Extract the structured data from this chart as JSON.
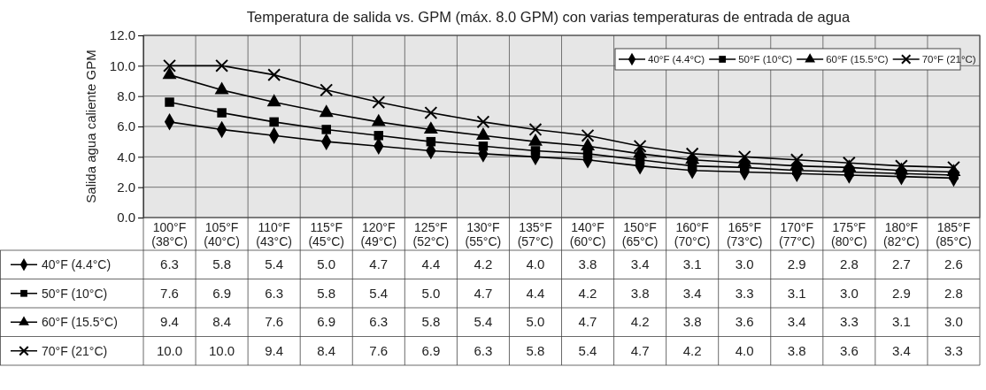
{
  "chart_data": {
    "type": "line",
    "title": "Temperatura de salida vs. GPM (máx. 8.0 GPM) con varias temperaturas de entrada de agua",
    "ylabel": "Salida agua caliente GPM",
    "categories": [
      "100°F (38°C)",
      "105°F (40°C)",
      "110°F (43°C)",
      "115°F (45°C)",
      "120°F (49°C)",
      "125°F (52°C)",
      "130°F (55°C)",
      "135°F (57°C)",
      "140°F (60°C)",
      "150°F (65°C)",
      "160°F (70°C)",
      "165°F (73°C)",
      "170°F (77°C)",
      "175°F (80°C)",
      "180°F (82°C)",
      "185°F (85°C)"
    ],
    "ylim": [
      0,
      12
    ],
    "yticks": [
      {
        "value": 0,
        "label": "0.0"
      },
      {
        "value": 2,
        "label": "2.0"
      },
      {
        "value": 4,
        "label": "4.0"
      },
      {
        "value": 6,
        "label": "6.0"
      },
      {
        "value": 8,
        "label": "8.0"
      },
      {
        "value": 10,
        "label": "10.0"
      },
      {
        "value": 12,
        "label": "12.0"
      }
    ],
    "grid": true,
    "legend": "top right",
    "line_style": "solid",
    "series": [
      {
        "name": "40°F (4.4°C)",
        "color": "#000000",
        "marker": "diamond",
        "values": [
          6.3,
          5.8,
          5.4,
          5.0,
          4.7,
          4.4,
          4.2,
          4.0,
          3.8,
          3.4,
          3.1,
          3.0,
          2.9,
          2.8,
          2.7,
          2.6
        ],
        "value_labels": [
          "6.3",
          "5.8",
          "5.4",
          "5.0",
          "4.7",
          "4.4",
          "4.2",
          "4.0",
          "3.8",
          "3.4",
          "3.1",
          "3.0",
          "2.9",
          "2.8",
          "2.7",
          "2.6"
        ]
      },
      {
        "name": "50°F (10°C)",
        "color": "#000000",
        "marker": "square",
        "values": [
          7.6,
          6.9,
          6.3,
          5.8,
          5.4,
          5.0,
          4.7,
          4.4,
          4.2,
          3.8,
          3.4,
          3.3,
          3.1,
          3.0,
          2.9,
          2.8
        ],
        "value_labels": [
          "7.6",
          "6.9",
          "6.3",
          "5.8",
          "5.4",
          "5.0",
          "4.7",
          "4.4",
          "4.2",
          "3.8",
          "3.4",
          "3.3",
          "3.1",
          "3.0",
          "2.9",
          "2.8"
        ]
      },
      {
        "name": "60°F (15.5°C)",
        "color": "#000000",
        "marker": "triangle",
        "values": [
          9.4,
          8.4,
          7.6,
          6.9,
          6.3,
          5.8,
          5.4,
          5.0,
          4.7,
          4.2,
          3.8,
          3.6,
          3.4,
          3.3,
          3.1,
          3.0
        ],
        "value_labels": [
          "9.4",
          "8.4",
          "7.6",
          "6.9",
          "6.3",
          "5.8",
          "5.4",
          "5.0",
          "4.7",
          "4.2",
          "3.8",
          "3.6",
          "3.4",
          "3.3",
          "3.1",
          "3.0"
        ]
      },
      {
        "name": "70°F (21°C)",
        "color": "#000000",
        "marker": "cross",
        "values": [
          10.0,
          10.0,
          9.4,
          8.4,
          7.6,
          6.9,
          6.3,
          5.8,
          5.4,
          4.7,
          4.2,
          4.0,
          3.8,
          3.6,
          3.4,
          3.3
        ],
        "value_labels": [
          "10.0",
          "10.0",
          "9.4",
          "8.4",
          "7.6",
          "6.9",
          "6.3",
          "5.8",
          "5.4",
          "4.7",
          "4.2",
          "4.0",
          "3.8",
          "3.6",
          "3.4",
          "3.3"
        ]
      }
    ]
  }
}
